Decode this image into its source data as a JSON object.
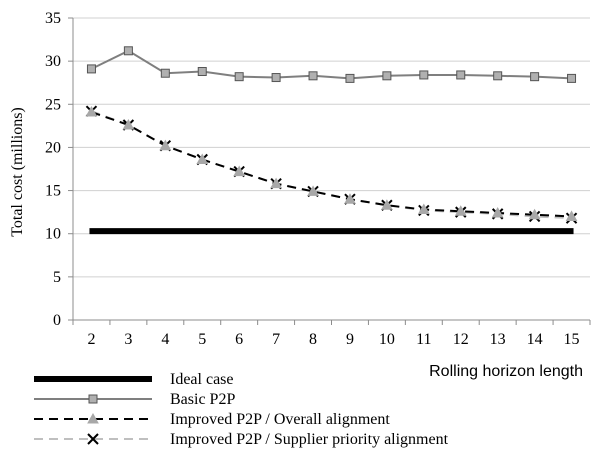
{
  "chart_data": {
    "type": "line",
    "ylabel": "Total cost (millions)",
    "xlabel": "Rolling horizon length",
    "x": [
      2,
      3,
      4,
      5,
      6,
      7,
      8,
      9,
      10,
      11,
      12,
      13,
      14,
      15
    ],
    "ylim": [
      0,
      35
    ],
    "yticks": [
      0,
      5,
      10,
      15,
      20,
      25,
      30,
      35
    ],
    "grid": "horizontal",
    "legend_position": "bottom-left",
    "series": [
      {
        "name": "Ideal case",
        "style": "thick-solid",
        "marker": "none",
        "color": "#000000",
        "values": [
          10.3,
          10.3,
          10.3,
          10.3,
          10.3,
          10.3,
          10.3,
          10.3,
          10.3,
          10.3,
          10.3,
          10.3,
          10.3,
          10.3
        ]
      },
      {
        "name": "Basic P2P",
        "style": "solid",
        "marker": "square",
        "color": "#7f7f7f",
        "values": [
          29.1,
          31.2,
          28.6,
          28.8,
          28.2,
          28.1,
          28.3,
          28.0,
          28.3,
          28.4,
          28.4,
          28.3,
          28.2,
          28.0
        ]
      },
      {
        "name": "Improved P2P / Overall alignment",
        "style": "dashed",
        "marker": "triangle",
        "color": "#000000",
        "values": [
          24.1,
          22.6,
          20.2,
          18.6,
          17.2,
          15.8,
          14.9,
          14.0,
          13.3,
          12.8,
          12.6,
          12.4,
          12.2,
          12.0
        ]
      },
      {
        "name": "Improved P2P / Supplier priority alignment",
        "style": "dashed",
        "marker": "x",
        "color": "#bfbfbf",
        "values": [
          24.2,
          22.6,
          20.2,
          18.6,
          17.2,
          15.8,
          14.9,
          14.0,
          13.3,
          12.7,
          12.5,
          12.3,
          12.0,
          11.8
        ]
      }
    ]
  }
}
